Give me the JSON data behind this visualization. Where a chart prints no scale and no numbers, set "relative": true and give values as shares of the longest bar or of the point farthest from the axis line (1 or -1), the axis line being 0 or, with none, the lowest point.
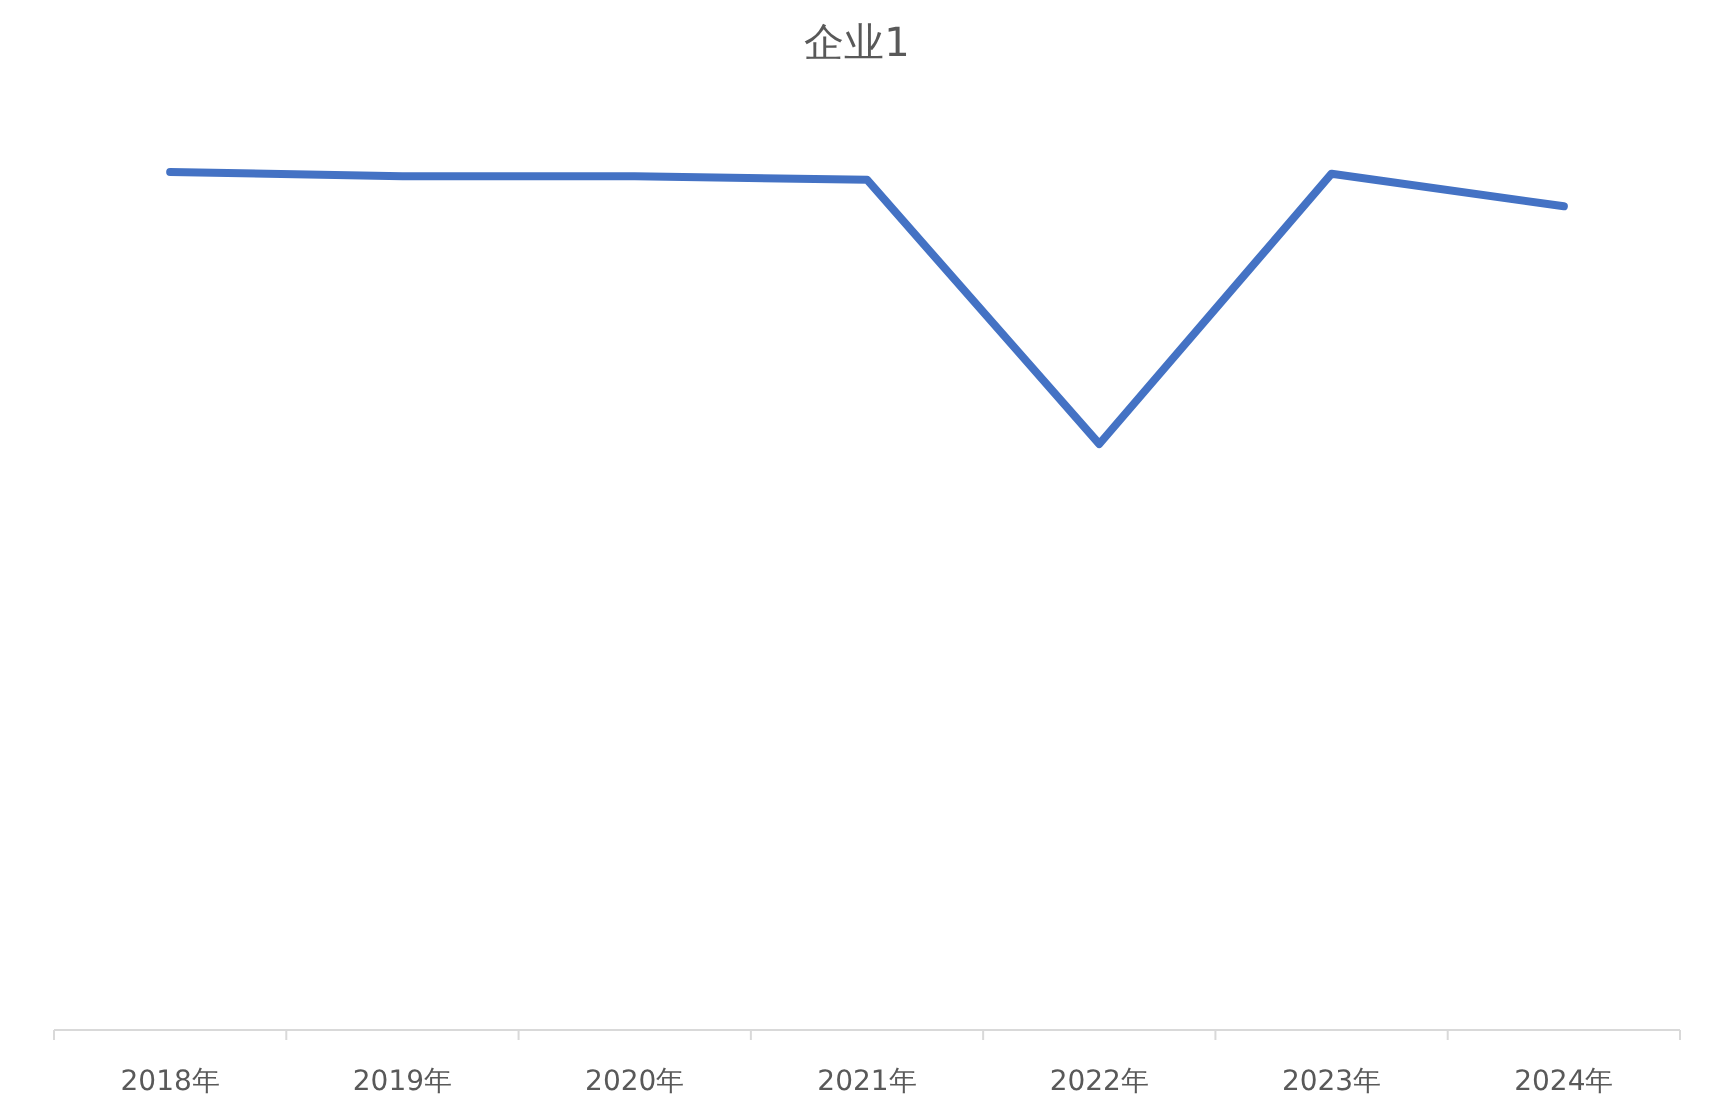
{
  "chart_data": {
    "type": "line",
    "title": "企业1",
    "categories": [
      "2018年",
      "2019年",
      "2020年",
      "2021年",
      "2022年",
      "2023年",
      "2024年"
    ],
    "series": [
      {
        "color": "#4472c4",
        "values": [
          1,
          0.995,
          0.995,
          0.991,
          0.683,
          0.998,
          0.96
        ]
      }
    ],
    "relative": true,
    "marker": "none",
    "line_style": "solid"
  }
}
